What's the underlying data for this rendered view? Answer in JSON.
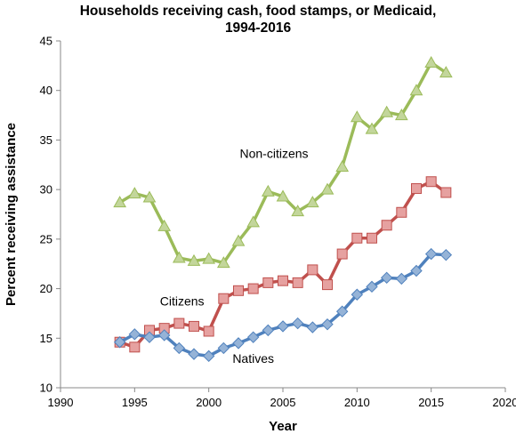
{
  "chart_data": {
    "type": "line",
    "title_line1": "Households receiving cash, food stamps, or Medicaid,",
    "title_line2": "1994-2016",
    "xlabel": "Year",
    "ylabel": "Percent receiving assistance",
    "xlim": [
      1990,
      2020
    ],
    "ylim": [
      10,
      45
    ],
    "xticks": [
      1990,
      1995,
      2000,
      2005,
      2010,
      2015,
      2020
    ],
    "yticks": [
      10,
      15,
      20,
      25,
      30,
      35,
      40,
      45
    ],
    "grid": false,
    "legend": "none (series labeled inline)",
    "series": [
      {
        "name": "Non-citizens",
        "color": "#9BBB59",
        "fill": "#C3D69B",
        "marker": "triangle",
        "x": [
          1994,
          1995,
          1996,
          1997,
          1998,
          1999,
          2000,
          2001,
          2002,
          2003,
          2004,
          2005,
          2006,
          2007,
          2008,
          2009,
          2010,
          2011,
          2012,
          2013,
          2014,
          2015,
          2016
        ],
        "y": [
          28.7,
          29.6,
          29.2,
          26.3,
          23.1,
          22.8,
          23.0,
          22.6,
          24.8,
          26.7,
          29.8,
          29.3,
          27.8,
          28.7,
          30.0,
          32.3,
          37.3,
          36.1,
          37.8,
          37.5,
          40.0,
          42.8,
          41.8
        ]
      },
      {
        "name": "Citizens",
        "color": "#C0504D",
        "fill": "#E6A1A0",
        "marker": "square",
        "x": [
          1994,
          1995,
          1996,
          1997,
          1998,
          1999,
          2000,
          2001,
          2002,
          2003,
          2004,
          2005,
          2006,
          2007,
          2008,
          2009,
          2010,
          2011,
          2012,
          2013,
          2014,
          2015,
          2016
        ],
        "y": [
          14.6,
          14.1,
          15.8,
          16.0,
          16.5,
          16.2,
          15.7,
          19.0,
          19.8,
          20.0,
          20.6,
          20.8,
          20.6,
          21.9,
          20.4,
          23.5,
          25.1,
          25.1,
          26.4,
          27.7,
          30.1,
          30.8,
          29.7
        ]
      },
      {
        "name": "Natives",
        "color": "#4F81BD",
        "fill": "#95B3D7",
        "marker": "diamond",
        "x": [
          1994,
          1995,
          1996,
          1997,
          1998,
          1999,
          2000,
          2001,
          2002,
          2003,
          2004,
          2005,
          2006,
          2007,
          2008,
          2009,
          2010,
          2011,
          2012,
          2013,
          2014,
          2015,
          2016
        ],
        "y": [
          14.6,
          15.4,
          15.1,
          15.3,
          14.0,
          13.4,
          13.2,
          14.0,
          14.5,
          15.1,
          15.8,
          16.2,
          16.5,
          16.1,
          16.4,
          17.7,
          19.4,
          20.2,
          21.1,
          21.0,
          21.8,
          23.5,
          23.4
        ]
      }
    ],
    "annotations": [
      {
        "text": "Non-citizens",
        "x": 2004.4,
        "y": 33.2
      },
      {
        "text": "Citizens",
        "x": 1998.2,
        "y": 18.3
      },
      {
        "text": "Natives",
        "x": 2003.0,
        "y": 12.5
      }
    ]
  }
}
